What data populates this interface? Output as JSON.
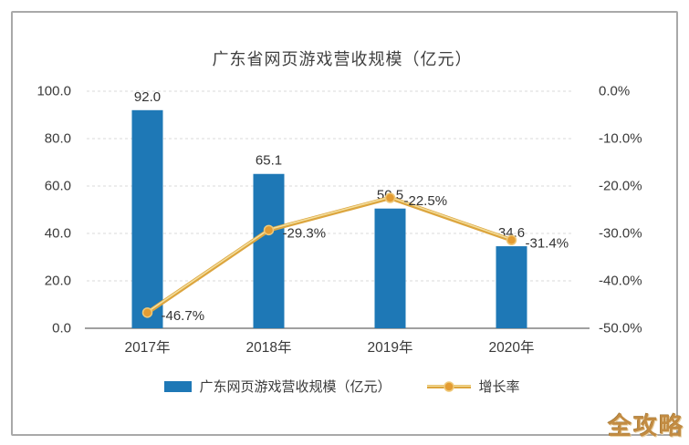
{
  "title": "广东省网页游戏营收规模（亿元）",
  "watermark": "全攻略",
  "legend": {
    "items": [
      {
        "label": "广东网页游戏营收规模（亿元）",
        "type": "bar"
      },
      {
        "label": "增长率",
        "type": "line"
      }
    ]
  },
  "colors": {
    "bar": "#1e78b6",
    "line_outer": "#dca53e",
    "line_inner": "#f3de9c",
    "marker_fill": "#e39c33",
    "marker_stroke": "#efc979",
    "grid": "#d9d9d9",
    "axis": "#a0a0a0",
    "text": "#333333",
    "tick_text": "#3a3a3a"
  },
  "chart_data": {
    "type": "bar+line combo",
    "title": "广东省网页游戏营收规模（亿元）",
    "categories": [
      "2017年",
      "2018年",
      "2019年",
      "2020年"
    ],
    "series": [
      {
        "name": "广东网页游戏营收规模（亿元）",
        "type": "bar",
        "axis": "left",
        "values": [
          92.0,
          65.1,
          50.5,
          34.6
        ],
        "labels": [
          "92.0",
          "65.1",
          "50.5",
          "34.6"
        ]
      },
      {
        "name": "增长率",
        "type": "line",
        "axis": "right",
        "values": [
          -46.7,
          -29.3,
          -22.5,
          -31.4
        ],
        "labels": [
          "-46.7%",
          "-29.3%",
          "-22.5%",
          "-31.4%"
        ]
      }
    ],
    "left_axis": {
      "max": 100,
      "min": 0,
      "ticks": [
        "100.0",
        "80.0",
        "60.0",
        "40.0",
        "20.0",
        "0.0"
      ]
    },
    "right_axis": {
      "max": 0,
      "min": -50,
      "ticks": [
        "0.0%",
        "-10.0%",
        "-20.0%",
        "-30.0%",
        "-40.0%",
        "-50.0%"
      ]
    },
    "grid": "horizontal-dashed",
    "legend_position": "bottom"
  }
}
